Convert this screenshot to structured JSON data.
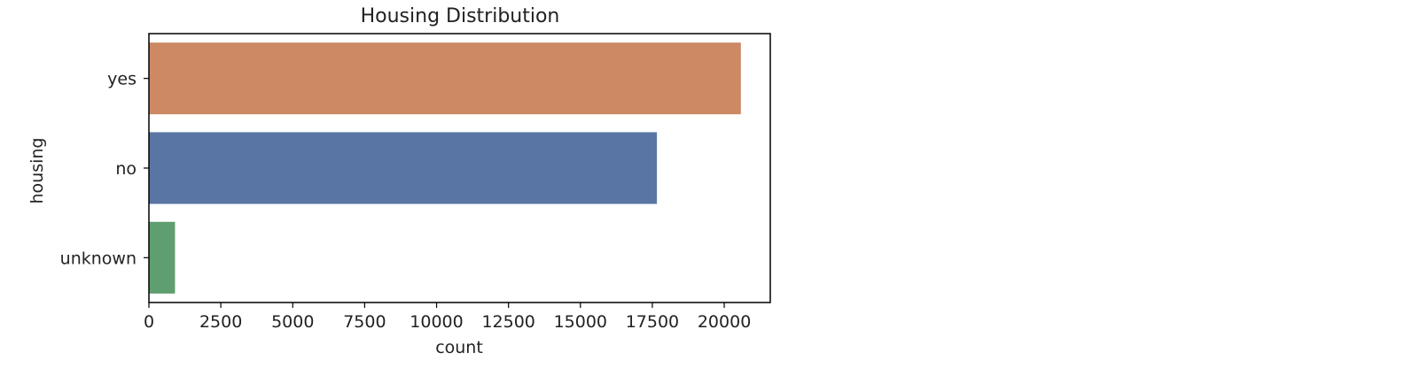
{
  "chart_data": {
    "type": "bar",
    "orientation": "horizontal",
    "title": "Housing Distribution",
    "xlabel": "count",
    "ylabel": "housing",
    "categories": [
      "yes",
      "no",
      "unknown"
    ],
    "values": [
      20577,
      17659,
      907
    ],
    "xlim": [
      0,
      21600
    ],
    "xticks": [
      0,
      2500,
      5000,
      7500,
      10000,
      12500,
      15000,
      17500,
      20000
    ],
    "grid": false,
    "legend": "none",
    "colors": [
      "#cc8963",
      "#5975a4",
      "#5f9e6e"
    ]
  }
}
